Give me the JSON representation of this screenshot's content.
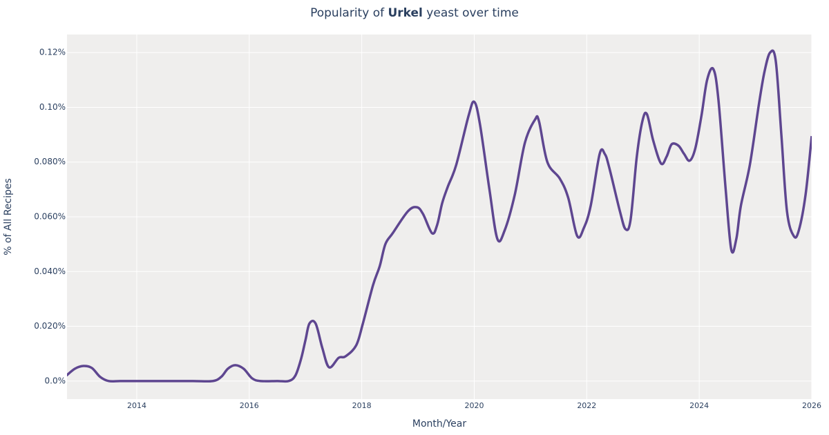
{
  "chart_data": {
    "type": "line",
    "title": [
      "Popularity of ",
      "Urkel",
      " yeast over time"
    ],
    "xlabel": "Month/Year",
    "ylabel": "% of All Recipes",
    "x": [
      2012.75,
      2012.9,
      2013.05,
      2013.2,
      2013.35,
      2013.5,
      2013.7,
      2014.0,
      2014.5,
      2015.0,
      2015.35,
      2015.5,
      2015.62,
      2015.75,
      2015.9,
      2016.05,
      2016.2,
      2016.5,
      2016.7,
      2016.82,
      2016.92,
      2017.0,
      2017.07,
      2017.18,
      2017.3,
      2017.42,
      2017.59,
      2017.71,
      2017.9,
      2018.02,
      2018.2,
      2018.32,
      2018.42,
      2018.55,
      2018.82,
      2018.98,
      2019.09,
      2019.25,
      2019.34,
      2019.43,
      2019.53,
      2019.68,
      2019.9,
      2020.0,
      2020.1,
      2020.27,
      2020.41,
      2020.54,
      2020.72,
      2020.9,
      2021.08,
      2021.15,
      2021.3,
      2021.52,
      2021.67,
      2021.83,
      2021.95,
      2022.07,
      2022.23,
      2022.32,
      2022.4,
      2022.59,
      2022.69,
      2022.78,
      2022.89,
      2022.99,
      2023.07,
      2023.18,
      2023.32,
      2023.42,
      2023.51,
      2023.63,
      2023.73,
      2023.83,
      2023.93,
      2024.04,
      2024.14,
      2024.25,
      2024.34,
      2024.47,
      2024.57,
      2024.66,
      2024.74,
      2024.9,
      2025.06,
      2025.16,
      2025.26,
      2025.36,
      2025.46,
      2025.56,
      2025.68,
      2025.77,
      2025.89,
      2026.0
    ],
    "series": [
      {
        "name": "Urkel",
        "color": "#5e4690",
        "values": [
          0.002,
          0.0045,
          0.0055,
          0.0048,
          0.0015,
          0,
          0,
          0,
          0,
          0,
          0,
          0.0015,
          0.0045,
          0.0058,
          0.0045,
          0.001,
          0,
          0,
          0,
          0.002,
          0.008,
          0.015,
          0.021,
          0.021,
          0.012,
          0.005,
          0.0085,
          0.009,
          0.013,
          0.021,
          0.035,
          0.042,
          0.05,
          0.054,
          0.062,
          0.0635,
          0.061,
          0.054,
          0.057,
          0.065,
          0.071,
          0.079,
          0.097,
          0.102,
          0.094,
          0.07,
          0.052,
          0.055,
          0.068,
          0.087,
          0.0955,
          0.095,
          0.08,
          0.074,
          0.067,
          0.053,
          0.056,
          0.064,
          0.083,
          0.083,
          0.078,
          0.062,
          0.0555,
          0.059,
          0.082,
          0.095,
          0.0975,
          0.088,
          0.0795,
          0.082,
          0.0865,
          0.086,
          0.083,
          0.0805,
          0.085,
          0.097,
          0.11,
          0.114,
          0.103,
          0.07,
          0.048,
          0.052,
          0.064,
          0.079,
          0.101,
          0.113,
          0.12,
          0.117,
          0.09,
          0.062,
          0.053,
          0.055,
          0.068,
          0.0895
        ]
      }
    ],
    "xlim": [
      2012.76,
      2026
    ],
    "xticks": [
      2014,
      2016,
      2018,
      2020,
      2022,
      2024,
      2026
    ],
    "ylim": [
      -0.0066,
      0.1266
    ],
    "yticks": [
      {
        "value": 0,
        "label": "0.0%"
      },
      {
        "value": 0.02,
        "label": "0.020%"
      },
      {
        "value": 0.04,
        "label": "0.040%"
      },
      {
        "value": 0.06,
        "label": "0.060%"
      },
      {
        "value": 0.08,
        "label": "0.080%"
      },
      {
        "value": 0.1,
        "label": "0.10%"
      },
      {
        "value": 0.12,
        "label": "0.12%"
      }
    ],
    "grid": true
  }
}
